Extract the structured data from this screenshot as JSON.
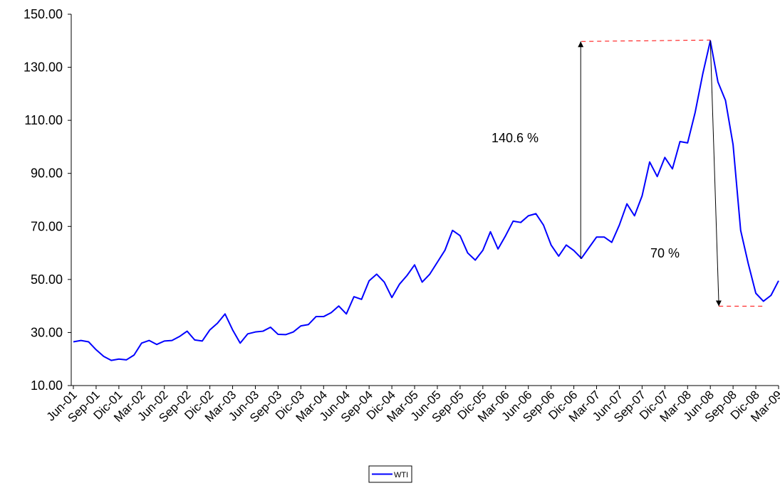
{
  "chart_data": {
    "type": "line",
    "categories": [
      "Jun-01",
      null,
      null,
      "Sep-01",
      null,
      null,
      "Dic-01",
      null,
      null,
      "Mar-02",
      null,
      null,
      "Jun-02",
      null,
      null,
      "Sep-02",
      null,
      null,
      "Dic-02",
      null,
      null,
      "Mar-03",
      null,
      null,
      "Jun-03",
      null,
      null,
      "Sep-03",
      null,
      null,
      "Dic-03",
      null,
      null,
      "Mar-04",
      null,
      null,
      "Jun-04",
      null,
      null,
      "Sep-04",
      null,
      null,
      "Dic-04",
      null,
      null,
      "Mar-05",
      null,
      null,
      "Jun-05",
      null,
      null,
      "Sep-05",
      null,
      null,
      "Dic-05",
      null,
      null,
      "Mar-06",
      null,
      null,
      "Jun-06",
      null,
      null,
      "Sep-06",
      null,
      null,
      "Dic-06",
      null,
      null,
      "Mar-07",
      null,
      null,
      "Jun-07",
      null,
      null,
      "Sep-07",
      null,
      null,
      "Dic-07",
      null,
      null,
      "Mar-08",
      null,
      null,
      "Jun-08",
      null,
      null,
      "Sep-08",
      null,
      null,
      "Dic-08",
      null,
      null,
      "Mar-09"
    ],
    "series": [
      {
        "name": "WTI",
        "color": "#0000ff",
        "values": [
          26.5,
          27,
          26.5,
          23.5,
          21,
          19.5,
          20,
          19.7,
          21.5,
          26,
          27,
          25.5,
          26.8,
          27,
          28.5,
          30.5,
          27.2,
          26.8,
          31,
          33.5,
          37,
          31,
          26,
          29.5,
          30.2,
          30.5,
          32,
          29.3,
          29.2,
          30.2,
          32.5,
          33,
          36,
          36,
          37.5,
          40,
          37,
          43.5,
          42.5,
          49.5,
          52,
          49,
          43.2,
          48.2,
          51.5,
          55.5,
          49,
          52,
          56.5,
          61,
          68.5,
          66.5,
          60,
          57.3,
          61,
          68,
          61.5,
          66.5,
          72,
          71.5,
          74,
          74.8,
          70.5,
          63,
          58.8,
          63,
          60.9,
          58,
          62,
          66,
          66,
          64,
          70.5,
          78.5,
          74,
          81.5,
          94.3,
          88.8,
          96,
          91.7,
          102,
          101.5,
          113,
          127.5,
          140,
          124.5,
          117.5,
          100.8,
          68.5,
          56,
          44.8,
          41.8,
          44,
          49.5
        ]
      }
    ],
    "ylim": [
      10,
      150
    ],
    "yticks": [
      {
        "value": 10,
        "label": "10.00"
      },
      {
        "value": 30,
        "label": "30.00"
      },
      {
        "value": 50,
        "label": "50.00"
      },
      {
        "value": 70,
        "label": "70.00"
      },
      {
        "value": 90,
        "label": "90.00"
      },
      {
        "value": 110,
        "label": "110.00"
      },
      {
        "value": 130,
        "label": "130.00"
      },
      {
        "value": 150,
        "label": "150.00"
      }
    ],
    "annotations": [
      "140.6 %",
      "70 %"
    ],
    "legend": "bottom"
  }
}
